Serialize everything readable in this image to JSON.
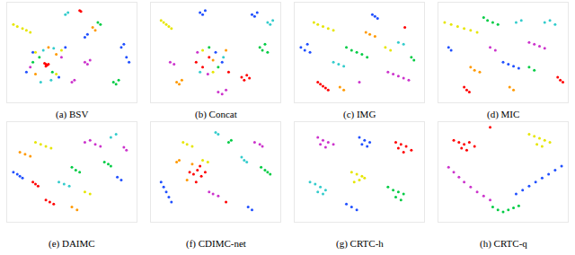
{
  "chart_data": [
    {
      "type": "scatter",
      "title": "(a) BSV",
      "xlim": [
        0,
        100
      ],
      "ylim": [
        0,
        100
      ],
      "tick_labels": false,
      "grid": false,
      "series": [
        {
          "color": "#ff0000",
          "x": [
            30,
            31,
            29,
            30,
            32,
            56,
            57
          ],
          "values": [
            38,
            37,
            39,
            36,
            38,
            92,
            91
          ]
        },
        {
          "color": "#1f4fff",
          "x": [
            15,
            20,
            40,
            45,
            88,
            90,
            92,
            94,
            60,
            62
          ],
          "values": [
            30,
            50,
            25,
            55,
            55,
            58,
            45,
            40,
            65,
            68
          ]
        },
        {
          "color": "#00cc44",
          "x": [
            25,
            35,
            20,
            82,
            84,
            86,
            70,
            72
          ],
          "values": [
            45,
            30,
            40,
            20,
            18,
            22,
            80,
            78
          ]
        },
        {
          "color": "#e6e600",
          "x": [
            5,
            8,
            12,
            15,
            18,
            22,
            38,
            42
          ],
          "values": [
            78,
            76,
            74,
            72,
            70,
            50,
            28,
            52
          ]
        },
        {
          "color": "#cc33cc",
          "x": [
            18,
            42,
            60,
            62,
            64,
            50,
            52
          ],
          "values": [
            35,
            45,
            40,
            38,
            42,
            20,
            22
          ]
        },
        {
          "color": "#33cccc",
          "x": [
            28,
            34,
            26,
            36,
            45,
            47
          ],
          "values": [
            52,
            22,
            20,
            54,
            88,
            90
          ]
        },
        {
          "color": "#ff9900",
          "x": [
            22,
            38,
            32,
            66,
            68
          ],
          "values": [
            28,
            48,
            55,
            75,
            72
          ]
        }
      ]
    },
    {
      "type": "scatter",
      "title": "(b) Concat",
      "xlim": [
        0,
        100
      ],
      "ylim": [
        0,
        100
      ],
      "tick_labels": false,
      "grid": false,
      "series": [
        {
          "color": "#ff0000",
          "x": [
            35,
            40,
            45,
            70,
            72,
            74,
            76,
            60
          ],
          "values": [
            40,
            35,
            45,
            25,
            22,
            27,
            24,
            30
          ]
        },
        {
          "color": "#1f4fff",
          "x": [
            38,
            40,
            42,
            78,
            80,
            82,
            50,
            55
          ],
          "values": [
            90,
            88,
            92,
            88,
            86,
            90,
            50,
            40
          ]
        },
        {
          "color": "#00cc44",
          "x": [
            84,
            86,
            88,
            90,
            45,
            52
          ],
          "values": [
            55,
            52,
            58,
            50,
            55,
            35
          ]
        },
        {
          "color": "#e6e600",
          "x": [
            8,
            10,
            12,
            14,
            16,
            40,
            48
          ],
          "values": [
            82,
            80,
            78,
            76,
            74,
            52,
            30
          ]
        },
        {
          "color": "#cc33cc",
          "x": [
            52,
            55,
            58,
            36,
            44,
            15,
            18
          ],
          "values": [
            10,
            8,
            12,
            50,
            28,
            40,
            38
          ]
        },
        {
          "color": "#33cccc",
          "x": [
            90,
            92,
            94,
            38,
            56
          ],
          "values": [
            80,
            78,
            82,
            30,
            45
          ]
        },
        {
          "color": "#ff9900",
          "x": [
            20,
            22,
            24,
            48,
            58
          ],
          "values": [
            20,
            18,
            22,
            42,
            52
          ]
        }
      ]
    },
    {
      "type": "scatter",
      "title": "(c) IMG",
      "xlim": [
        0,
        100
      ],
      "ylim": [
        0,
        100
      ],
      "tick_labels": false,
      "grid": false,
      "series": [
        {
          "color": "#ff0000",
          "x": [
            18,
            20,
            22,
            24,
            26,
            85
          ],
          "values": [
            20,
            18,
            16,
            14,
            12,
            75
          ]
        },
        {
          "color": "#1f4fff",
          "x": [
            5,
            8,
            10,
            12,
            60,
            62,
            64
          ],
          "values": [
            55,
            52,
            58,
            50,
            88,
            86,
            84
          ]
        },
        {
          "color": "#00cc44",
          "x": [
            40,
            44,
            48,
            52,
            56,
            90,
            92
          ],
          "values": [
            55,
            52,
            50,
            48,
            45,
            45,
            42
          ]
        },
        {
          "color": "#e6e600",
          "x": [
            15,
            18,
            22,
            26,
            30,
            70,
            74
          ],
          "values": [
            80,
            78,
            76,
            74,
            72,
            55,
            52
          ]
        },
        {
          "color": "#cc33cc",
          "x": [
            72,
            76,
            80,
            84,
            88,
            50
          ],
          "values": [
            30,
            28,
            26,
            24,
            22,
            20
          ]
        },
        {
          "color": "#33cccc",
          "x": [
            30,
            34,
            38,
            80,
            84
          ],
          "values": [
            40,
            38,
            36,
            60,
            58
          ]
        },
        {
          "color": "#ff9900",
          "x": [
            55,
            58,
            62,
            35,
            38
          ],
          "values": [
            70,
            68,
            66,
            15,
            12
          ]
        }
      ]
    },
    {
      "type": "scatter",
      "title": "(d) MIC",
      "xlim": [
        0,
        100
      ],
      "ylim": [
        0,
        100
      ],
      "tick_labels": false,
      "grid": false,
      "series": [
        {
          "color": "#ff0000",
          "x": [
            92,
            94,
            96,
            20,
            22,
            24
          ],
          "values": [
            25,
            22,
            20,
            15,
            12,
            10
          ]
        },
        {
          "color": "#1f4fff",
          "x": [
            50,
            54,
            58,
            62,
            8,
            10
          ],
          "values": [
            40,
            38,
            36,
            34,
            55,
            52
          ]
        },
        {
          "color": "#00cc44",
          "x": [
            35,
            38,
            42,
            46,
            70,
            74
          ],
          "values": [
            85,
            82,
            80,
            78,
            35,
            32
          ]
        },
        {
          "color": "#e6e600",
          "x": [
            5,
            10,
            15,
            20,
            25,
            30
          ],
          "values": [
            80,
            78,
            76,
            74,
            72,
            70
          ]
        },
        {
          "color": "#cc33cc",
          "x": [
            70,
            74,
            78,
            82,
            40,
            44
          ],
          "values": [
            60,
            58,
            56,
            54,
            55,
            52
          ]
        },
        {
          "color": "#33cccc",
          "x": [
            82,
            86,
            90,
            60,
            64
          ],
          "values": [
            80,
            82,
            78,
            80,
            82
          ]
        },
        {
          "color": "#ff9900",
          "x": [
            25,
            28,
            32,
            55,
            58
          ],
          "values": [
            35,
            32,
            30,
            15,
            12
          ]
        }
      ]
    },
    {
      "type": "scatter",
      "title": "(e) DAIMC",
      "xlim": [
        0,
        100
      ],
      "ylim": [
        0,
        100
      ],
      "tick_labels": false,
      "grid": false,
      "series": [
        {
          "color": "#ff0000",
          "x": [
            30,
            33,
            36,
            20,
            22,
            24
          ],
          "values": [
            22,
            20,
            18,
            40,
            38,
            36
          ]
        },
        {
          "color": "#1f4fff",
          "x": [
            5,
            8,
            10,
            12,
            85,
            88
          ],
          "values": [
            50,
            48,
            46,
            44,
            45,
            42
          ]
        },
        {
          "color": "#00cc44",
          "x": [
            50,
            53,
            56,
            75,
            78,
            80
          ],
          "values": [
            55,
            52,
            50,
            60,
            58,
            56
          ]
        },
        {
          "color": "#e6e600",
          "x": [
            22,
            26,
            30,
            34,
            60,
            64
          ],
          "values": [
            80,
            78,
            76,
            74,
            30,
            28
          ]
        },
        {
          "color": "#cc33cc",
          "x": [
            60,
            64,
            68,
            72,
            90,
            92
          ],
          "values": [
            80,
            82,
            78,
            76,
            75,
            72
          ]
        },
        {
          "color": "#33cccc",
          "x": [
            40,
            44,
            48,
            80,
            84
          ],
          "values": [
            40,
            38,
            36,
            85,
            88
          ]
        },
        {
          "color": "#ff9900",
          "x": [
            10,
            14,
            18,
            50,
            54
          ],
          "values": [
            70,
            68,
            66,
            15,
            12
          ]
        }
      ]
    },
    {
      "type": "scatter",
      "title": "(f) CDIMC-net",
      "xlim": [
        0,
        100
      ],
      "ylim": [
        0,
        100
      ],
      "tick_labels": false,
      "grid": false,
      "series": [
        {
          "color": "#ff0000",
          "x": [
            30,
            33,
            36,
            39,
            42,
            35,
            38,
            58
          ],
          "values": [
            50,
            48,
            52,
            46,
            50,
            40,
            56,
            20
          ]
        },
        {
          "color": "#1f4fff",
          "x": [
            8,
            10,
            12,
            14,
            16,
            75,
            78
          ],
          "values": [
            40,
            35,
            30,
            25,
            20,
            15,
            12
          ]
        },
        {
          "color": "#00cc44",
          "x": [
            85,
            88,
            90,
            92,
            60,
            62
          ],
          "values": [
            55,
            52,
            50,
            48,
            80,
            82
          ]
        },
        {
          "color": "#e6e600",
          "x": [
            25,
            28,
            32,
            40,
            44
          ],
          "values": [
            80,
            78,
            76,
            62,
            60
          ]
        },
        {
          "color": "#cc33cc",
          "x": [
            45,
            48,
            52,
            80,
            84,
            86
          ],
          "values": [
            30,
            28,
            26,
            80,
            78,
            76
          ]
        },
        {
          "color": "#33cccc",
          "x": [
            70,
            72,
            74,
            50,
            52
          ],
          "values": [
            65,
            62,
            60,
            90,
            88
          ]
        },
        {
          "color": "#ff9900",
          "x": [
            20,
            22,
            28,
            32
          ],
          "values": [
            60,
            62,
            42,
            58
          ]
        }
      ]
    },
    {
      "type": "scatter",
      "title": "(g) CRTC-h",
      "xlim": [
        0,
        100
      ],
      "ylim": [
        0,
        100
      ],
      "tick_labels": false,
      "grid": false,
      "series": [
        {
          "color": "#ff0000",
          "x": [
            78,
            82,
            86,
            90,
            84,
            80
          ],
          "values": [
            80,
            78,
            76,
            72,
            70,
            74
          ]
        },
        {
          "color": "#1f4fff",
          "x": [
            50,
            54,
            58,
            52,
            56,
            40,
            44,
            48
          ],
          "values": [
            85,
            82,
            80,
            78,
            76,
            18,
            15,
            12
          ]
        },
        {
          "color": "#00cc44",
          "x": [
            72,
            76,
            80,
            84,
            78,
            82
          ],
          "values": [
            35,
            32,
            30,
            28,
            25,
            22
          ]
        },
        {
          "color": "#e6e600",
          "x": [
            44,
            48,
            52,
            50,
            46,
            54
          ],
          "values": [
            50,
            48,
            46,
            42,
            40,
            44
          ]
        },
        {
          "color": "#cc33cc",
          "x": [
            18,
            22,
            26,
            30,
            24,
            20
          ],
          "values": [
            85,
            82,
            80,
            78,
            75,
            78
          ]
        },
        {
          "color": "#33cccc",
          "x": [
            12,
            16,
            20,
            24,
            18,
            22
          ],
          "values": [
            40,
            38,
            35,
            32,
            30,
            28
          ]
        }
      ]
    },
    {
      "type": "scatter",
      "title": "(h) CRTC-q",
      "xlim": [
        0,
        100
      ],
      "ylim": [
        0,
        100
      ],
      "tick_labels": false,
      "grid": false,
      "series": [
        {
          "color": "#ff0000",
          "x": [
            12,
            16,
            20,
            24,
            28,
            18,
            22,
            40
          ],
          "values": [
            82,
            80,
            78,
            80,
            76,
            74,
            72,
            95
          ]
        },
        {
          "color": "#e6e600",
          "x": [
            70,
            74,
            78,
            82,
            86,
            76,
            80
          ],
          "values": [
            88,
            86,
            84,
            82,
            80,
            78,
            76
          ]
        },
        {
          "color": "#cc33cc",
          "x": [
            8,
            12,
            16,
            20,
            25,
            30,
            35,
            40
          ],
          "values": [
            55,
            50,
            45,
            40,
            35,
            30,
            26,
            22
          ]
        },
        {
          "color": "#1f4fff",
          "x": [
            60,
            65,
            70,
            75,
            80,
            85,
            90,
            95
          ],
          "values": [
            28,
            32,
            36,
            40,
            44,
            48,
            52,
            56
          ]
        },
        {
          "color": "#00cc44",
          "x": [
            42,
            46,
            50,
            54,
            58,
            62
          ],
          "values": [
            15,
            12,
            10,
            12,
            14,
            16
          ]
        }
      ]
    }
  ]
}
